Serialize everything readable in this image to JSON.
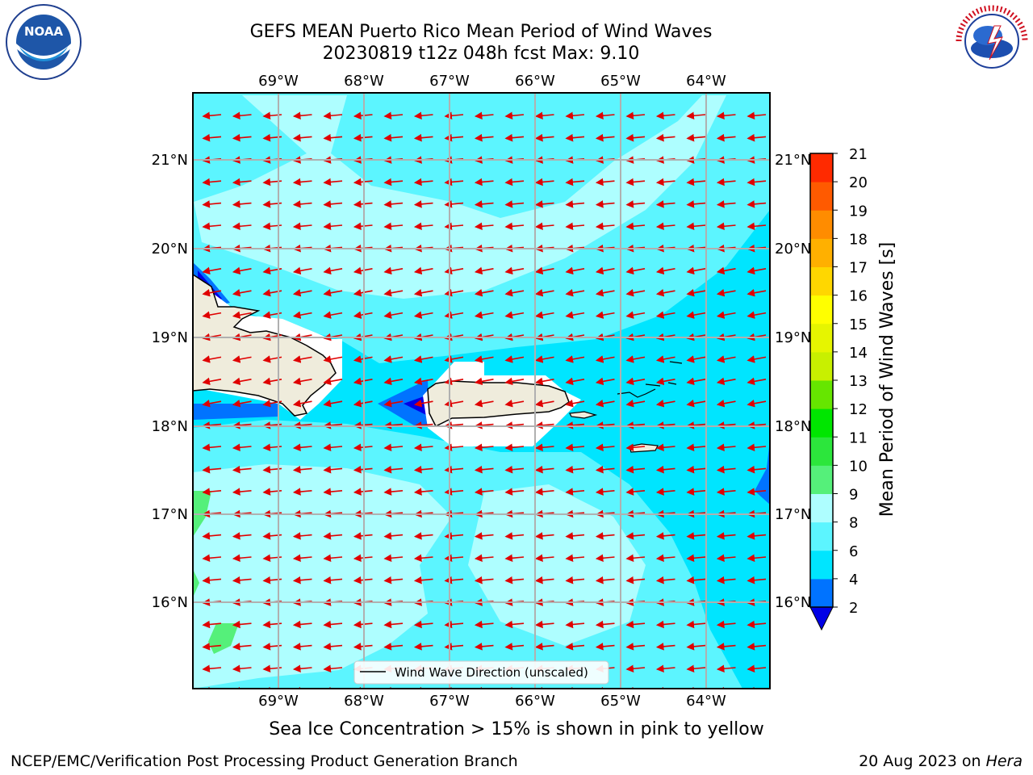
{
  "title": {
    "line1": "GEFS MEAN Puerto Rico Mean Period of Wind Waves",
    "line2": "20230819 t12z 048h fcst   Max: 9.10"
  },
  "logos": {
    "left": "NOAA",
    "right": "National Weather Service"
  },
  "map": {
    "lon_ticks": [
      "69°W",
      "68°W",
      "67°W",
      "66°W",
      "65°W",
      "64°W"
    ],
    "lat_ticks": [
      "21°N",
      "20°N",
      "19°N",
      "18°N",
      "17°N",
      "16°N"
    ],
    "legend_label": "Wind Wave Direction (unscaled)",
    "arrow_color": "#e00000",
    "land_color": "#efecdc"
  },
  "colorbar": {
    "label": "Mean Period of Wind Waves [s]",
    "ticks": [
      "2",
      "4",
      "6",
      "8",
      "9",
      "10",
      "11",
      "12",
      "13",
      "14",
      "15",
      "16",
      "17",
      "18",
      "19",
      "20",
      "21"
    ],
    "colors": [
      "#0000e6",
      "#0073ff",
      "#00e5ff",
      "#5cf5ff",
      "#aefeff",
      "#55f07a",
      "#2ce63c",
      "#00e600",
      "#66e600",
      "#c8f000",
      "#e6f500",
      "#ffff00",
      "#ffd700",
      "#ffb000",
      "#ff8c00",
      "#ff5a00",
      "#ff2a00",
      "#ff0000"
    ]
  },
  "footer": {
    "ice_note": "Sea Ice Concentration > 15% is shown in pink to yellow",
    "credit": "NCEP/EMC/Verification Post Processing Product Generation Branch",
    "date": "20 Aug 2023 on",
    "machine": "Hera"
  }
}
